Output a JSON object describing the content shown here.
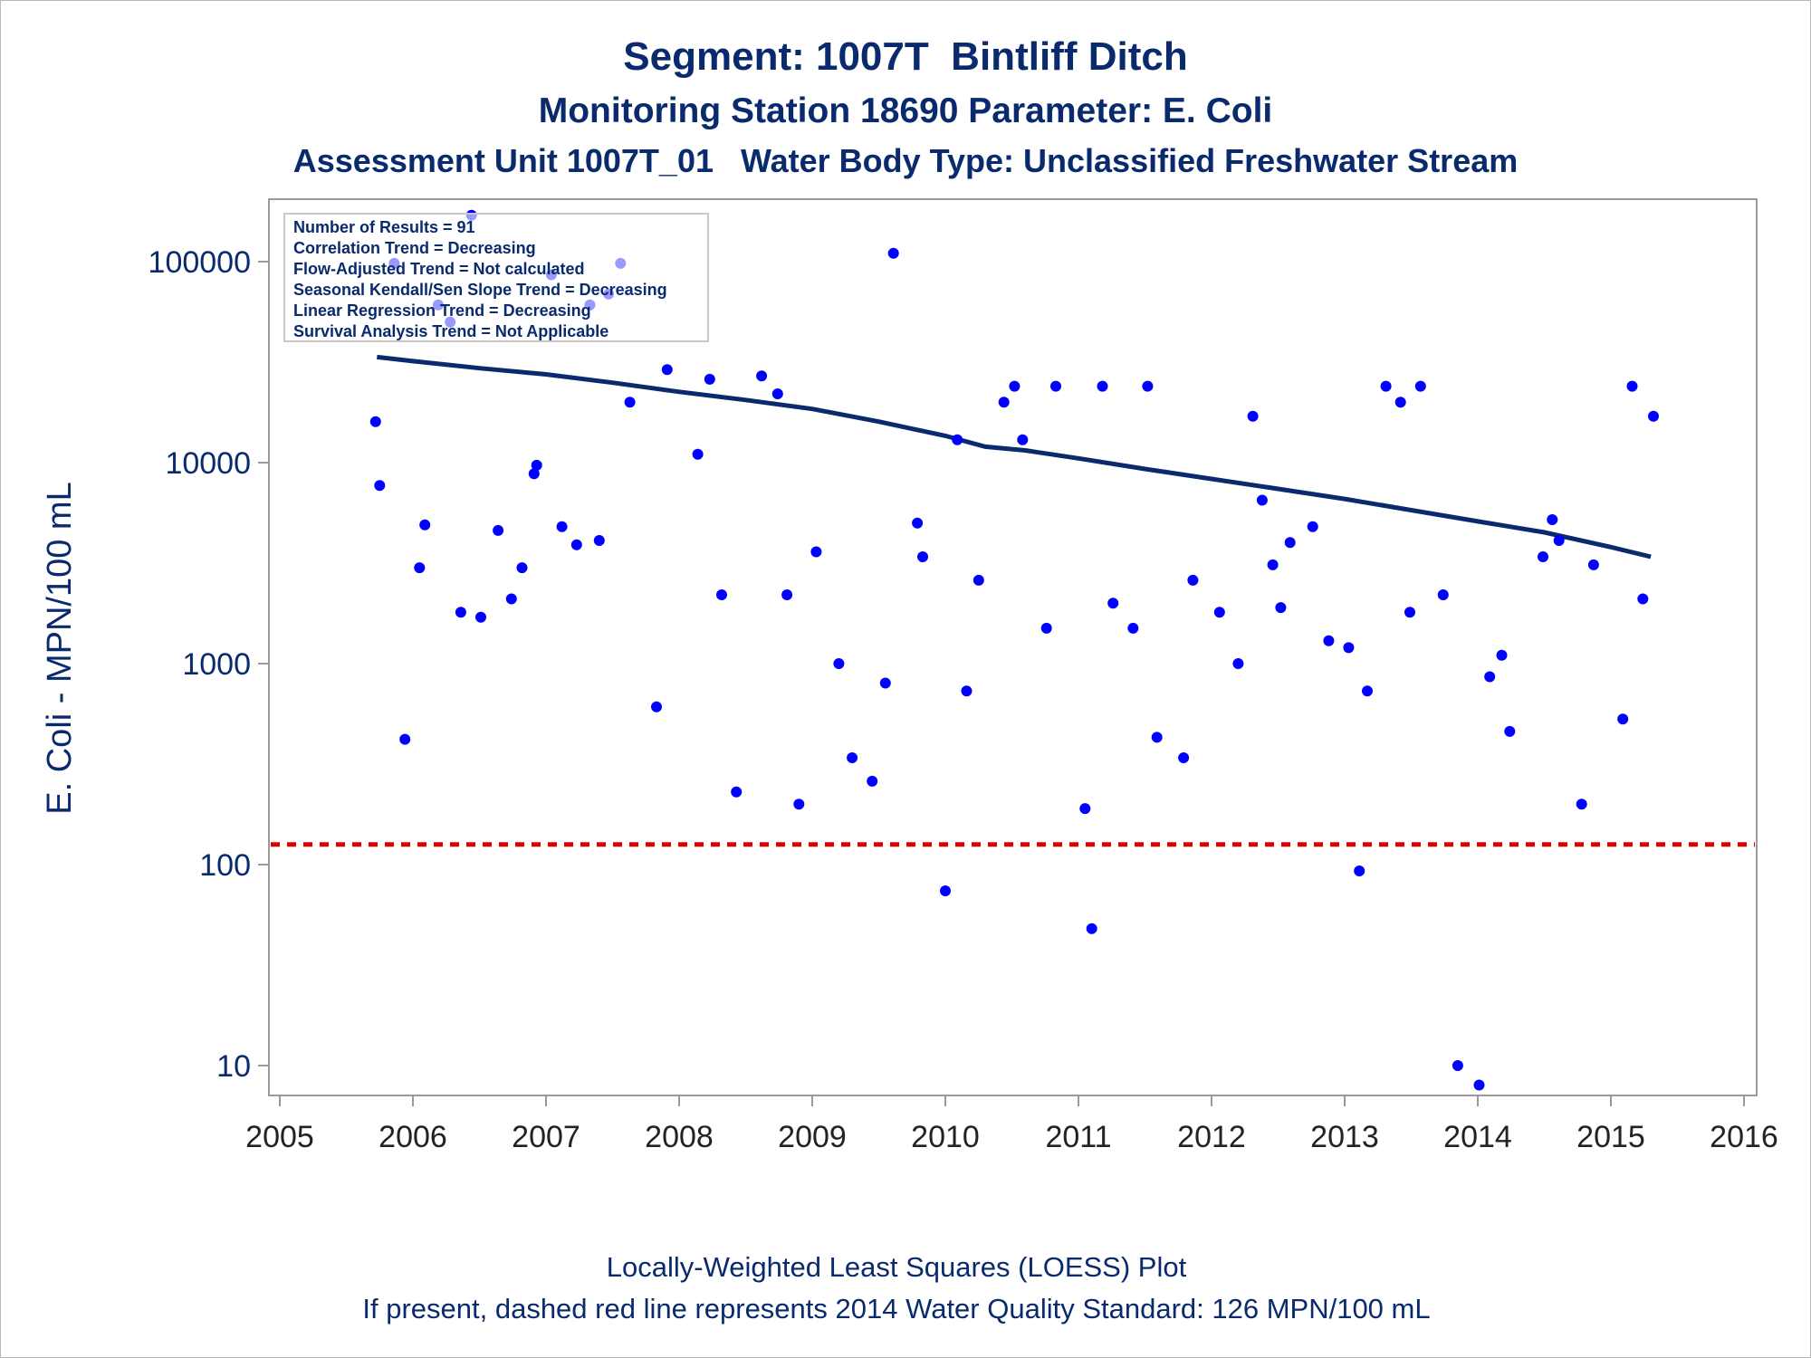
{
  "title_lines": [
    "Segment: 1007T  Bintliff Ditch",
    "Monitoring Station 18690 Parameter: E. Coli",
    "Assessment Unit 1007T_01   Water Body Type: Unclassified Freshwater Stream"
  ],
  "footer_lines": [
    "Locally-Weighted Least Squares (LOESS) Plot",
    "If present, dashed red line represents 2014 Water Quality Standard: 126 MPN/100 mL"
  ],
  "colors": {
    "text": "#0a2a6e",
    "points": "#0000ff",
    "trend": "#0a2a6e",
    "standard": "#dd0000",
    "axis": "#9a9a9a"
  },
  "chart_data": {
    "type": "scatter",
    "ylabel": "E. Coli - MPN/100 mL",
    "yscale": "log",
    "xlim": [
      2005,
      2016
    ],
    "ylim": [
      6,
      200000
    ],
    "x_ticks": [
      "2005",
      "2006",
      "2007",
      "2008",
      "2009",
      "2010",
      "2011",
      "2012",
      "2013",
      "2014",
      "2015",
      "2016"
    ],
    "y_ticks": [
      "10",
      "100",
      "1000",
      "10000",
      "100000"
    ],
    "legend": {
      "placement": "top-left",
      "entries": [
        "Number of Results = 91",
        "Correlation Trend = Decreasing",
        "Flow-Adjusted Trend = Not calculated",
        "Seasonal Kendall/Sen Slope Trend = Decreasing",
        "Linear Regression Trend = Decreasing",
        "Survival Analysis Trend = Not Applicable"
      ]
    },
    "standard_line": {
      "y": 126,
      "style": "dashed"
    },
    "points": [
      [
        2005.72,
        16000
      ],
      [
        2005.75,
        7700
      ],
      [
        2005.86,
        98000
      ],
      [
        2005.94,
        420
      ],
      [
        2006.05,
        3000
      ],
      [
        2006.09,
        4900
      ],
      [
        2006.19,
        61000
      ],
      [
        2006.28,
        50000
      ],
      [
        2006.36,
        1800
      ],
      [
        2006.44,
        170000
      ],
      [
        2006.51,
        1700
      ],
      [
        2006.64,
        4600
      ],
      [
        2006.74,
        2100
      ],
      [
        2006.82,
        3000
      ],
      [
        2006.91,
        8800
      ],
      [
        2006.93,
        9700
      ],
      [
        2007.04,
        86000
      ],
      [
        2007.12,
        4800
      ],
      [
        2007.23,
        3900
      ],
      [
        2007.33,
        61000
      ],
      [
        2007.4,
        4100
      ],
      [
        2007.47,
        69000
      ],
      [
        2007.56,
        98000
      ],
      [
        2007.63,
        20000
      ],
      [
        2007.83,
        610
      ],
      [
        2007.91,
        29000
      ],
      [
        2008.14,
        11000
      ],
      [
        2008.23,
        26000
      ],
      [
        2008.32,
        2200
      ],
      [
        2008.43,
        230
      ],
      [
        2008.62,
        27000
      ],
      [
        2008.74,
        22000
      ],
      [
        2008.81,
        2200
      ],
      [
        2008.9,
        200
      ],
      [
        2009.03,
        3600
      ],
      [
        2009.2,
        1000
      ],
      [
        2009.3,
        340
      ],
      [
        2009.45,
        260
      ],
      [
        2009.55,
        800
      ],
      [
        2009.61,
        110000
      ],
      [
        2009.79,
        5000
      ],
      [
        2009.83,
        3400
      ],
      [
        2010.0,
        74
      ],
      [
        2010.09,
        13000
      ],
      [
        2010.16,
        730
      ],
      [
        2010.25,
        2600
      ],
      [
        2010.44,
        20000
      ],
      [
        2010.52,
        24000
      ],
      [
        2010.58,
        13000
      ],
      [
        2010.76,
        1500
      ],
      [
        2010.83,
        24000
      ],
      [
        2011.05,
        190
      ],
      [
        2011.1,
        48
      ],
      [
        2011.18,
        24000
      ],
      [
        2011.26,
        2000
      ],
      [
        2011.41,
        1500
      ],
      [
        2011.52,
        24000
      ],
      [
        2011.59,
        430
      ],
      [
        2011.79,
        340
      ],
      [
        2011.86,
        2600
      ],
      [
        2012.06,
        1800
      ],
      [
        2012.2,
        1000
      ],
      [
        2012.31,
        17000
      ],
      [
        2012.38,
        6500
      ],
      [
        2012.46,
        3100
      ],
      [
        2012.52,
        1900
      ],
      [
        2012.59,
        4000
      ],
      [
        2012.76,
        4800
      ],
      [
        2012.88,
        1300
      ],
      [
        2013.03,
        1200
      ],
      [
        2013.11,
        93
      ],
      [
        2013.17,
        730
      ],
      [
        2013.31,
        24000
      ],
      [
        2013.42,
        20000
      ],
      [
        2013.49,
        1800
      ],
      [
        2013.57,
        24000
      ],
      [
        2013.74,
        2200
      ],
      [
        2013.85,
        10
      ],
      [
        2014.01,
        8
      ],
      [
        2014.09,
        860
      ],
      [
        2014.18,
        1100
      ],
      [
        2014.24,
        460
      ],
      [
        2014.49,
        3400
      ],
      [
        2014.56,
        5200
      ],
      [
        2014.61,
        4100
      ],
      [
        2014.78,
        200
      ],
      [
        2014.87,
        3100
      ],
      [
        2015.09,
        530
      ],
      [
        2015.16,
        24000
      ],
      [
        2015.24,
        2100
      ],
      [
        2015.32,
        17000
      ]
    ],
    "trend_line": [
      [
        2005.73,
        33500
      ],
      [
        2006.0,
        32000
      ],
      [
        2006.5,
        29500
      ],
      [
        2007.0,
        27500
      ],
      [
        2007.5,
        25000
      ],
      [
        2008.0,
        22500
      ],
      [
        2008.5,
        20500
      ],
      [
        2009.0,
        18500
      ],
      [
        2009.5,
        16000
      ],
      [
        2010.0,
        13600
      ],
      [
        2010.3,
        12000
      ],
      [
        2010.6,
        11500
      ],
      [
        2011.0,
        10500
      ],
      [
        2011.5,
        9300
      ],
      [
        2012.0,
        8300
      ],
      [
        2012.5,
        7400
      ],
      [
        2013.0,
        6600
      ],
      [
        2013.5,
        5800
      ],
      [
        2014.0,
        5100
      ],
      [
        2014.5,
        4500
      ],
      [
        2015.0,
        3800
      ],
      [
        2015.3,
        3400
      ]
    ]
  }
}
